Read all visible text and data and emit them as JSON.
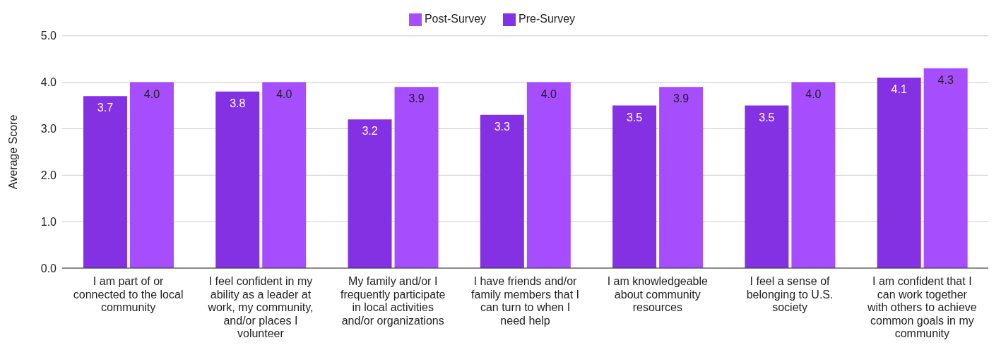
{
  "chart_data": {
    "type": "bar",
    "ylabel": "Average Score",
    "categories": [
      "I am part of or connected to the local community",
      "I feel confident in my ability as a leader at work, my community, and/or places I volunteer",
      "My family and/or I frequently participate in local activities and/or organizations",
      "I have friends and/or family members that I can turn to when I need help",
      "I am knowledgeable about community resources",
      "I feel a sense of belonging to U.S. society",
      "I am confident that I can work together with others to achieve common goals in my community"
    ],
    "series": [
      {
        "name": "Pre-Survey",
        "color": "#8430e3",
        "values": [
          3.7,
          3.8,
          3.2,
          3.3,
          3.5,
          3.5,
          4.1
        ],
        "value_labels": [
          "3.7",
          "3.8",
          "3.2",
          "3.3",
          "3.5",
          "3.5",
          "4.1"
        ]
      },
      {
        "name": "Post-Survey",
        "color": "#a64dfd",
        "values": [
          4.0,
          4.0,
          3.9,
          4.0,
          3.9,
          4.0,
          4.3
        ],
        "value_labels": [
          "4.0",
          "4.0",
          "3.9",
          "4.0",
          "3.9",
          "4.0",
          "4.3"
        ]
      }
    ],
    "ylim": [
      0,
      5
    ],
    "yticks": [
      {
        "value": 0,
        "label": "0.0"
      },
      {
        "value": 1,
        "label": "1.0"
      },
      {
        "value": 2,
        "label": "2.0"
      },
      {
        "value": 3,
        "label": "3.0"
      },
      {
        "value": 4,
        "label": "4.0"
      },
      {
        "value": 5,
        "label": "5.0"
      }
    ],
    "grid": "y",
    "legend": "top"
  }
}
